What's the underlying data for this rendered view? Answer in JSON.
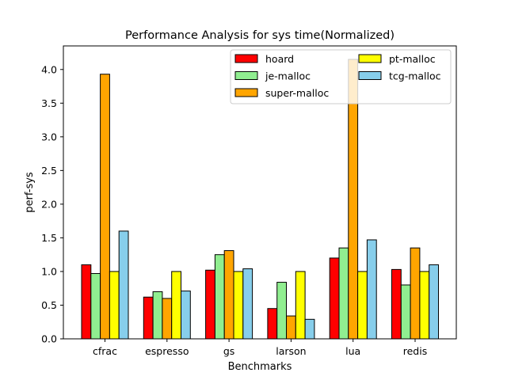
{
  "chart_data": {
    "type": "bar",
    "title": "Performance Analysis for sys time(Normalized)",
    "xlabel": "Benchmarks",
    "ylabel": "perf-sys",
    "ylim": [
      0,
      4.35
    ],
    "yticks": [
      "0.0",
      "0.5",
      "1.0",
      "1.5",
      "2.0",
      "2.5",
      "3.0",
      "3.5",
      "4.0"
    ],
    "categories": [
      "cfrac",
      "espresso",
      "gs",
      "larson",
      "lua",
      "redis"
    ],
    "legend_position": "top-right",
    "grid": false,
    "series": [
      {
        "name": "hoard",
        "color": "#ff0000",
        "values": [
          1.1,
          0.62,
          1.02,
          0.45,
          1.2,
          1.03
        ]
      },
      {
        "name": "je-malloc",
        "color": "#90ee90",
        "values": [
          0.97,
          0.7,
          1.25,
          0.84,
          1.35,
          0.8
        ]
      },
      {
        "name": "super-malloc",
        "color": "#ffa500",
        "values": [
          3.93,
          0.6,
          1.31,
          0.34,
          4.15,
          1.35
        ]
      },
      {
        "name": "pt-malloc",
        "color": "#ffff00",
        "values": [
          1.0,
          1.0,
          1.0,
          1.0,
          1.0,
          1.0
        ]
      },
      {
        "name": "tcg-malloc",
        "color": "#87ceeb",
        "values": [
          1.6,
          0.71,
          1.04,
          0.29,
          1.47,
          1.1
        ]
      }
    ]
  }
}
